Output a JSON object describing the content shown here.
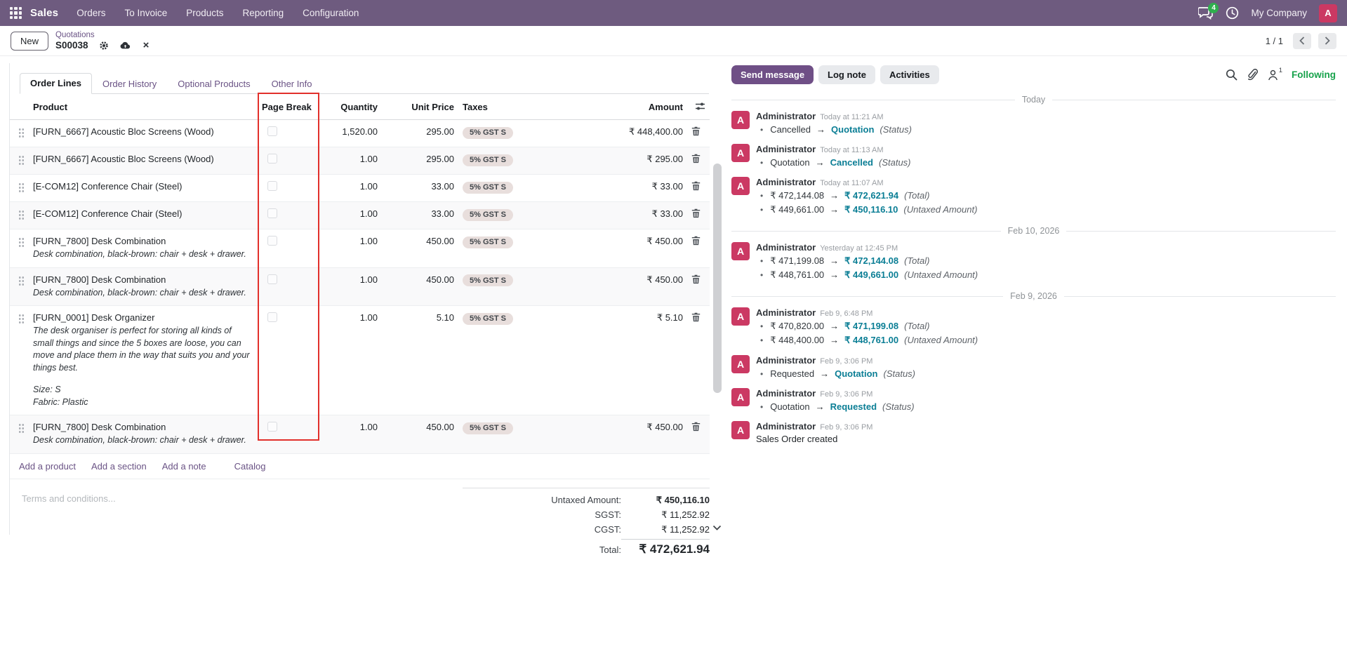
{
  "navbar": {
    "app_name": "Sales",
    "menus": [
      "Orders",
      "To Invoice",
      "Products",
      "Reporting",
      "Configuration"
    ],
    "message_badge": "4",
    "company": "My Company",
    "user_initial": "A"
  },
  "control_panel": {
    "new_button": "New",
    "breadcrumb_parent": "Quotations",
    "record_name": "S00038",
    "pager": "1 / 1"
  },
  "tabs": {
    "items": [
      {
        "label": "Order Lines",
        "active": true
      },
      {
        "label": "Order History",
        "active": false
      },
      {
        "label": "Optional Products",
        "active": false
      },
      {
        "label": "Other Info",
        "active": false
      }
    ]
  },
  "order_table": {
    "headers": {
      "product": "Product",
      "page_break": "Page Break",
      "quantity": "Quantity",
      "unit_price": "Unit Price",
      "taxes": "Taxes",
      "amount": "Amount"
    },
    "rows": [
      {
        "product": "[FURN_6667] Acoustic Bloc Screens (Wood)",
        "description": [],
        "quantity": "1,520.00",
        "unit_price": "295.00",
        "tax": "5% GST S",
        "amount": "₹ 448,400.00"
      },
      {
        "product": "[FURN_6667] Acoustic Bloc Screens (Wood)",
        "description": [],
        "quantity": "1.00",
        "unit_price": "295.00",
        "tax": "5% GST S",
        "amount": "₹ 295.00"
      },
      {
        "product": "[E-COM12] Conference Chair (Steel)",
        "description": [],
        "quantity": "1.00",
        "unit_price": "33.00",
        "tax": "5% GST S",
        "amount": "₹ 33.00"
      },
      {
        "product": "[E-COM12] Conference Chair (Steel)",
        "description": [],
        "quantity": "1.00",
        "unit_price": "33.00",
        "tax": "5% GST S",
        "amount": "₹ 33.00"
      },
      {
        "product": "[FURN_7800] Desk Combination",
        "description": [
          "Desk combination, black-brown: chair + desk + drawer."
        ],
        "quantity": "1.00",
        "unit_price": "450.00",
        "tax": "5% GST S",
        "amount": "₹ 450.00"
      },
      {
        "product": "[FURN_7800] Desk Combination",
        "description": [
          "Desk combination, black-brown: chair + desk + drawer."
        ],
        "quantity": "1.00",
        "unit_price": "450.00",
        "tax": "5% GST S",
        "amount": "₹ 450.00"
      },
      {
        "product": "[FURN_0001] Desk Organizer",
        "description": [
          "The desk organiser is perfect for storing all kinds of small things and since the 5 boxes are loose, you can move and place them in the way that suits you and your things best.",
          "",
          "Size: S",
          "Fabric: Plastic"
        ],
        "quantity": "1.00",
        "unit_price": "5.10",
        "tax": "5% GST S",
        "amount": "₹ 5.10"
      },
      {
        "product": "[FURN_7800] Desk Combination",
        "description": [
          "Desk combination, black-brown: chair + desk + drawer."
        ],
        "quantity": "1.00",
        "unit_price": "450.00",
        "tax": "5% GST S",
        "amount": "₹ 450.00"
      }
    ],
    "footer_links": [
      "Add a product",
      "Add a section",
      "Add a note",
      "Catalog"
    ]
  },
  "terms": {
    "placeholder": "Terms and conditions..."
  },
  "totals": {
    "rows": [
      {
        "label": "Untaxed Amount:",
        "value": "₹ 450,116.10",
        "style": "untaxed"
      },
      {
        "label": "SGST:",
        "value": "₹ 11,252.92",
        "style": "tax"
      },
      {
        "label": "CGST:",
        "value": "₹ 11,252.92",
        "style": "tax"
      },
      {
        "label": "Total:",
        "value": "₹ 472,621.94",
        "style": "total"
      }
    ]
  },
  "chatter": {
    "buttons": [
      "Send message",
      "Log note",
      "Activities"
    ],
    "follower_count": "1",
    "following_label": "Following",
    "avatar_initial": "A",
    "groups": [
      {
        "date": "Today",
        "messages": [
          {
            "author": "Administrator",
            "time": "Today at 11:21 AM",
            "changes": [
              {
                "from": "Cancelled",
                "to": "Quotation",
                "field": "(Status)"
              }
            ]
          },
          {
            "author": "Administrator",
            "time": "Today at 11:13 AM",
            "changes": [
              {
                "from": "Quotation",
                "to": "Cancelled",
                "field": "(Status)"
              }
            ]
          },
          {
            "author": "Administrator",
            "time": "Today at 11:07 AM",
            "changes": [
              {
                "from": "₹ 472,144.08",
                "to": "₹ 472,621.94",
                "field": "(Total)"
              },
              {
                "from": "₹ 449,661.00",
                "to": "₹ 450,116.10",
                "field": "(Untaxed Amount)"
              }
            ]
          }
        ]
      },
      {
        "date": "Feb 10, 2026",
        "messages": [
          {
            "author": "Administrator",
            "time": "Yesterday at 12:45 PM",
            "changes": [
              {
                "from": "₹ 471,199.08",
                "to": "₹ 472,144.08",
                "field": "(Total)"
              },
              {
                "from": "₹ 448,761.00",
                "to": "₹ 449,661.00",
                "field": "(Untaxed Amount)"
              }
            ]
          }
        ]
      },
      {
        "date": "Feb 9, 2026",
        "messages": [
          {
            "author": "Administrator",
            "time": "Feb 9, 6:48 PM",
            "changes": [
              {
                "from": "₹ 470,820.00",
                "to": "₹ 471,199.08",
                "field": "(Total)"
              },
              {
                "from": "₹ 448,400.00",
                "to": "₹ 448,761.00",
                "field": "(Untaxed Amount)"
              }
            ]
          },
          {
            "author": "Administrator",
            "time": "Feb 9, 3:06 PM",
            "changes": [
              {
                "from": "Requested",
                "to": "Quotation",
                "field": "(Status)"
              }
            ]
          },
          {
            "author": "Administrator",
            "time": "Feb 9, 3:06 PM",
            "changes": [
              {
                "from": "Quotation",
                "to": "Requested",
                "field": "(Status)"
              }
            ]
          },
          {
            "author": "Administrator",
            "time": "Feb 9, 3:06 PM",
            "text": "Sales Order created"
          }
        ]
      }
    ]
  },
  "icons": {
    "apps": "grid",
    "messages": "chat-bubbles",
    "activity": "clock",
    "settings": "gear",
    "save": "cloud-upload",
    "discard": "×",
    "pager_prev": "chevron-left",
    "pager_next": "chevron-right",
    "column_options": "sliders",
    "drag": "dots-handle",
    "delete_line": "trash",
    "search": "magnifier",
    "attachments": "paperclip",
    "followers": "person",
    "scroll_down": "chevron-down",
    "arrow": "→",
    "annotation_color": "#e2302b"
  }
}
